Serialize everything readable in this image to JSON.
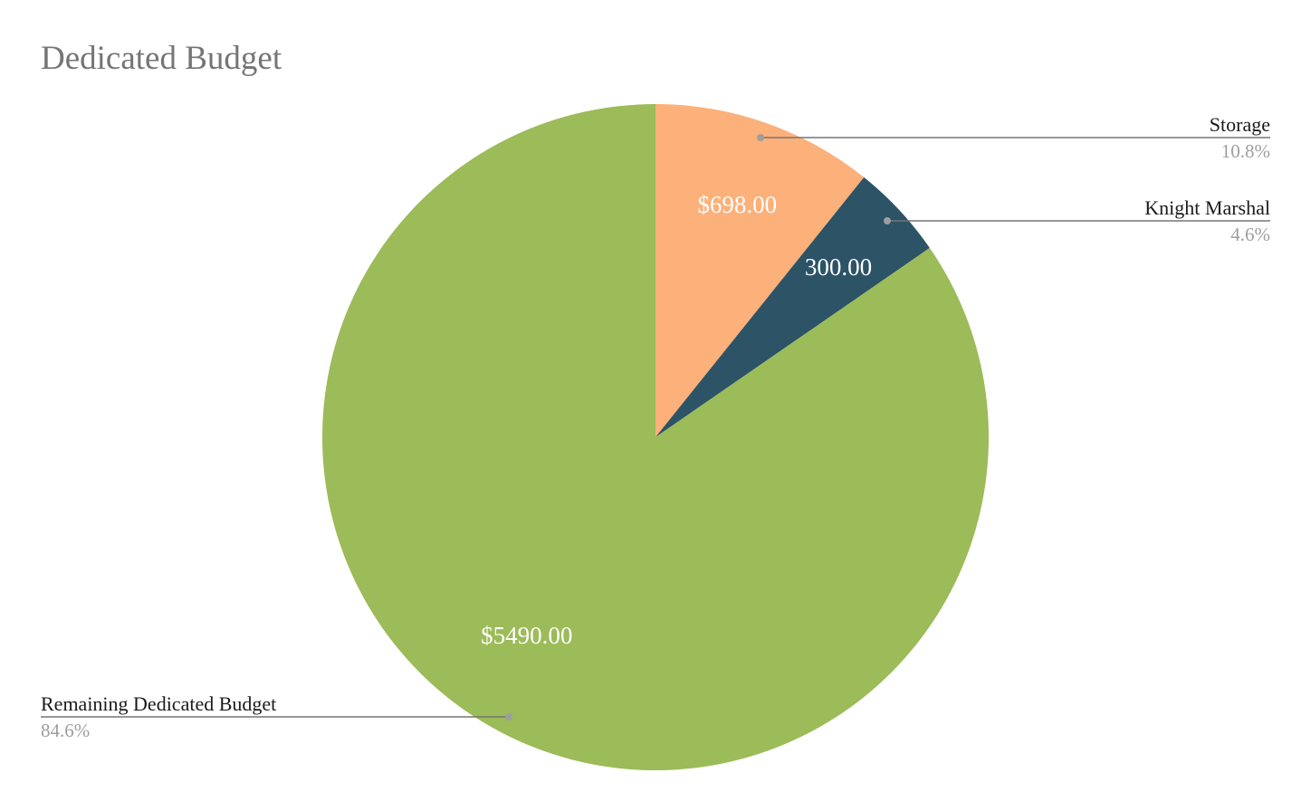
{
  "chart_data": {
    "type": "pie",
    "title": "Dedicated Budget",
    "start_angle_deg": 0,
    "direction": "clockwise",
    "slices": [
      {
        "name": "Storage",
        "value": 698.0,
        "value_label": "$698.00",
        "percent_label": "10.8%",
        "color": "#FCB07A"
      },
      {
        "name": "Knight Marshal",
        "value": 300.0,
        "value_label": "300.00",
        "percent_label": "4.6%",
        "color": "#2C5366"
      },
      {
        "name": "Remaining Dedicated Budget",
        "value": 5490.0,
        "value_label": "$5490.00",
        "percent_label": "84.6%",
        "color": "#9CBB59"
      }
    ],
    "legend_position": "outside-callouts"
  }
}
